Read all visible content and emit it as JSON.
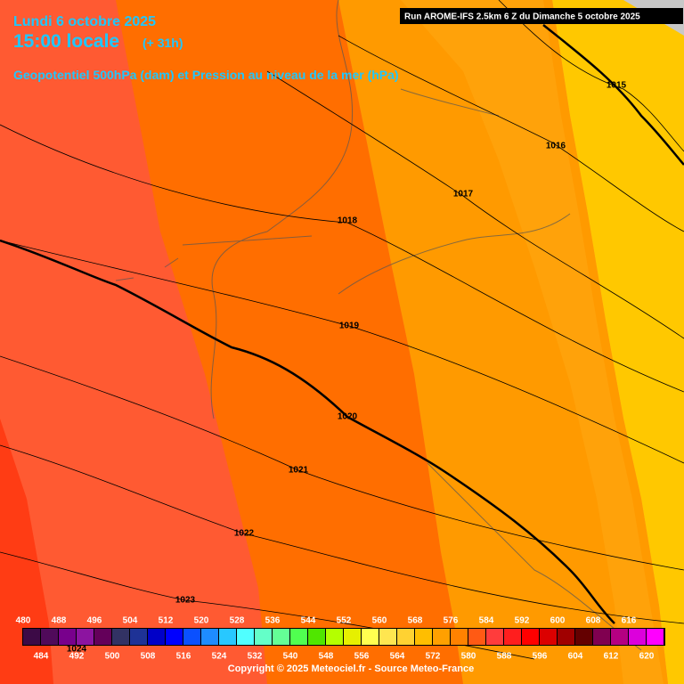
{
  "header": {
    "date": "Lundi 6 octobre 2025",
    "time": "15:00 locale",
    "lead": "(+ 31h)",
    "product": "Geopotentiel 500hPa (dam) et Pression au niveau de la mer (hPa)",
    "run": "Run AROME-IFS 2.5km 6 Z du Dimanche 5 octobre 2025"
  },
  "isobars": [
    "1015",
    "1016",
    "1017",
    "1018",
    "1019",
    "1020",
    "1021",
    "1022",
    "1023",
    "1024"
  ],
  "scale": {
    "labels": [
      "480",
      "484",
      "488",
      "492",
      "496",
      "500",
      "504",
      "508",
      "512",
      "516",
      "520",
      "524",
      "528",
      "532",
      "536",
      "540",
      "544",
      "548",
      "552",
      "556",
      "560",
      "564",
      "568",
      "572",
      "576",
      "580",
      "584",
      "588",
      "592",
      "596",
      "600",
      "604",
      "608",
      "612",
      "616",
      "620"
    ],
    "colors": [
      "#3c0a46",
      "#500a5a",
      "#78008c",
      "#8c14a0",
      "#64005a",
      "#323264",
      "#1e3296",
      "#0000c8",
      "#0000ff",
      "#0a50ff",
      "#1e8cff",
      "#28c8ff",
      "#50ffff",
      "#64ffc8",
      "#64ff96",
      "#50ff50",
      "#50e600",
      "#b4ff00",
      "#e6f000",
      "#ffff50",
      "#ffe650",
      "#ffd232",
      "#ffbe00",
      "#ffa000",
      "#ff8200",
      "#ff5a14",
      "#ff3c3c",
      "#ff1e1e",
      "#ff0000",
      "#dc0000",
      "#a00000",
      "#640000",
      "#800050",
      "#b40082",
      "#dc00dc",
      "#ff00ff"
    ]
  },
  "copyright": "Copyright © 2025 Meteociel.fr - Source Meteo-France"
}
